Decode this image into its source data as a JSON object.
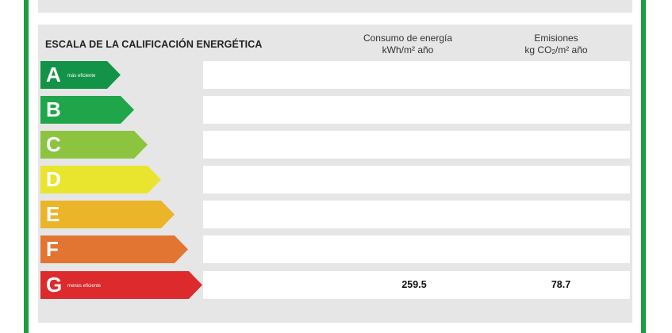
{
  "header": {
    "title": "ESCALA DE LA CALIFICACIÓN ENERGÉTICA",
    "energy_col": {
      "line1": "Consumo de energía",
      "line2": "kWh/m² año"
    },
    "co2_col": {
      "line1": "Emisiones",
      "line2_a": "kg CO",
      "line2_sub": "2",
      "line2_b": "/m² año"
    }
  },
  "ratings": [
    {
      "letter": "A",
      "note": "más eficiente",
      "color": "#139347",
      "energy": "",
      "co2": ""
    },
    {
      "letter": "B",
      "note": "",
      "color": "#1fa64a",
      "energy": "",
      "co2": ""
    },
    {
      "letter": "C",
      "note": "",
      "color": "#8cc43f",
      "energy": "",
      "co2": ""
    },
    {
      "letter": "D",
      "note": "",
      "color": "#e9e52e",
      "energy": "",
      "co2": ""
    },
    {
      "letter": "E",
      "note": "",
      "color": "#ebb52a",
      "energy": "",
      "co2": ""
    },
    {
      "letter": "F",
      "note": "",
      "color": "#e27532",
      "energy": "",
      "co2": ""
    },
    {
      "letter": "G",
      "note": "menos eficiente",
      "color": "#dc2a2d",
      "energy": "259.5",
      "co2": "78.7"
    }
  ],
  "frame_color": "#1e9c46"
}
